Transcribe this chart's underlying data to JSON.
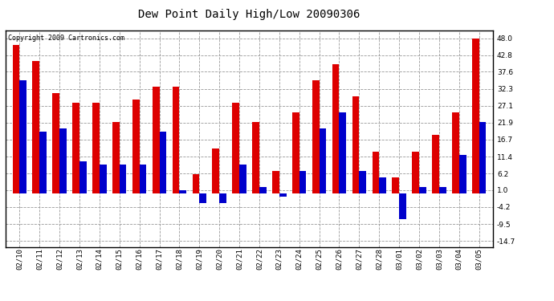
{
  "title": "Dew Point Daily High/Low 20090306",
  "copyright": "Copyright 2009 Cartronics.com",
  "dates": [
    "02/10",
    "02/11",
    "02/12",
    "02/13",
    "02/14",
    "02/15",
    "02/16",
    "02/17",
    "02/18",
    "02/19",
    "02/20",
    "02/21",
    "02/22",
    "02/23",
    "02/24",
    "02/25",
    "02/26",
    "02/27",
    "02/28",
    "03/01",
    "03/02",
    "03/03",
    "03/04",
    "03/05"
  ],
  "highs": [
    46,
    41,
    31,
    28,
    28,
    22,
    29,
    33,
    33,
    6,
    14,
    28,
    22,
    7,
    25,
    35,
    40,
    30,
    13,
    5,
    13,
    18,
    25,
    48
  ],
  "lows": [
    35,
    19,
    20,
    10,
    9,
    9,
    9,
    19,
    1,
    -3,
    -3,
    9,
    2,
    -1,
    7,
    20,
    25,
    7,
    5,
    -8,
    2,
    2,
    12,
    22
  ],
  "high_color": "#dd0000",
  "low_color": "#0000cc",
  "bg_color": "#ffffff",
  "plot_bg_color": "#ffffff",
  "grid_color": "#999999",
  "yticks": [
    48.0,
    42.8,
    37.6,
    32.3,
    27.1,
    21.9,
    16.7,
    11.4,
    6.2,
    1.0,
    -4.2,
    -9.5,
    -14.7
  ],
  "ylim": [
    -16.5,
    50.5
  ],
  "bar_width": 0.35,
  "title_fontsize": 10,
  "tick_fontsize": 6.5
}
